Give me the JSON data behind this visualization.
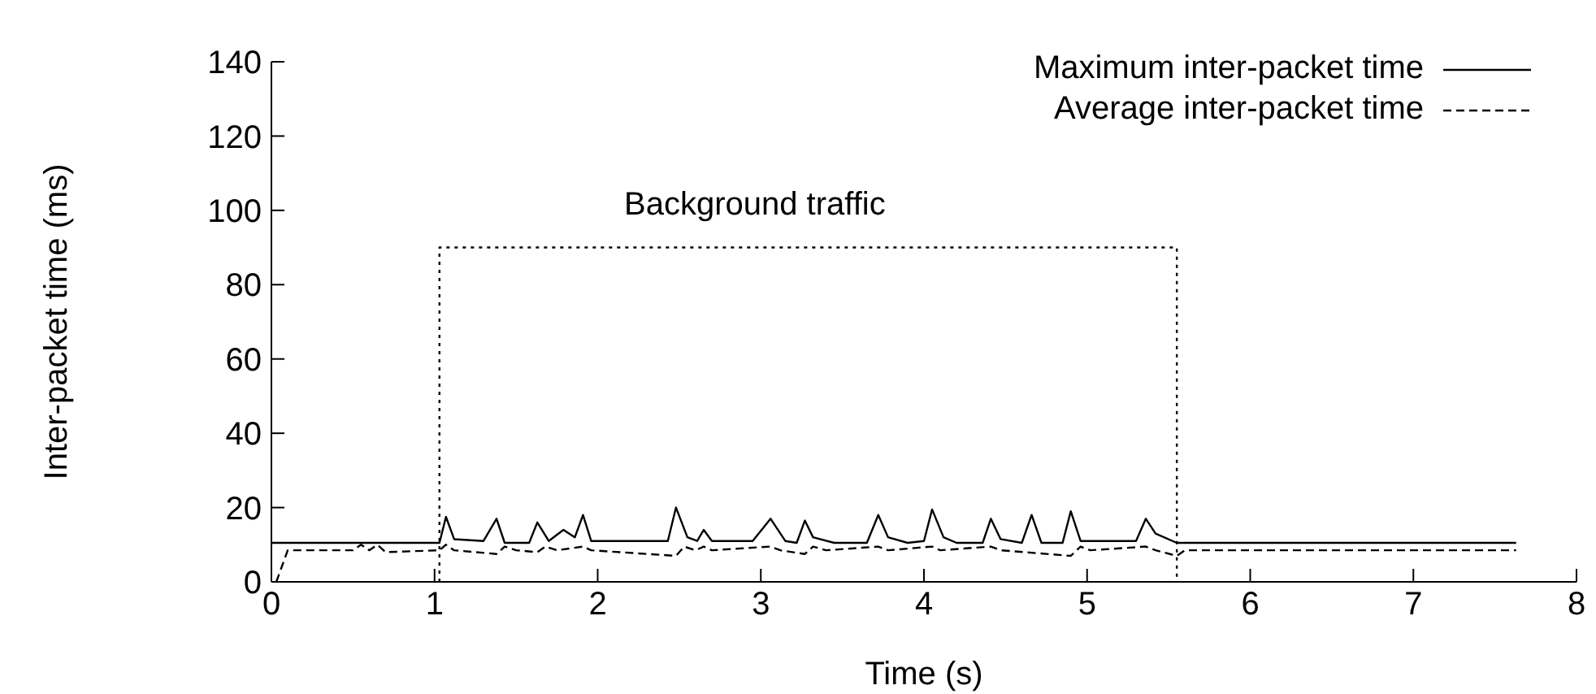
{
  "chart_data": {
    "type": "line",
    "xlabel": "Time (s)",
    "ylabel": "Inter-packet time (ms)",
    "xlim": [
      0,
      8
    ],
    "xticks": [
      0,
      1,
      2,
      3,
      4,
      5,
      6,
      7,
      8
    ],
    "ylim": [
      0,
      140
    ],
    "yticks": [
      0,
      20,
      40,
      60,
      80,
      100,
      120,
      140
    ],
    "grid": false,
    "legend": "top right",
    "marker": "none",
    "annotations": [
      "Background traffic"
    ],
    "series": [
      {
        "name": "Maximum inter-packet time",
        "color": "#000000",
        "line_style": "solid",
        "x": [
          0,
          1.03,
          1.07,
          1.12,
          1.3,
          1.38,
          1.43,
          1.58,
          1.63,
          1.7,
          1.79,
          1.86,
          1.91,
          1.96,
          2.2,
          2.43,
          2.48,
          2.55,
          2.61,
          2.65,
          2.7,
          2.95,
          3.06,
          3.15,
          3.22,
          3.27,
          3.32,
          3.45,
          3.65,
          3.72,
          3.78,
          3.9,
          4.0,
          4.05,
          4.12,
          4.2,
          4.36,
          4.41,
          4.47,
          4.6,
          4.66,
          4.72,
          4.85,
          4.9,
          4.96,
          5.3,
          5.36,
          5.42,
          5.55,
          7.63
        ],
        "values": [
          10.5,
          10.5,
          17.5,
          11.5,
          11,
          17,
          10.5,
          10.5,
          16,
          11,
          14,
          12,
          18,
          11,
          11,
          11,
          20,
          12,
          11,
          14,
          11,
          11,
          17,
          11,
          10.5,
          16.5,
          12,
          10.5,
          10.5,
          18,
          12,
          10.5,
          11,
          19.5,
          12,
          10.5,
          10.5,
          17,
          11.5,
          10.5,
          18,
          10.5,
          10.5,
          19,
          11,
          11,
          17,
          13,
          10.5,
          10.5
        ]
      },
      {
        "name": "Average inter-packet time",
        "color": "#000000",
        "line_style": "dashed",
        "x": [
          0.03,
          0.1,
          0.5,
          0.55,
          0.6,
          0.65,
          0.7,
          1.03,
          1.07,
          1.12,
          1.38,
          1.43,
          1.5,
          1.63,
          1.68,
          1.75,
          1.91,
          1.96,
          2.48,
          2.53,
          2.6,
          2.65,
          2.7,
          3.06,
          3.12,
          3.27,
          3.32,
          3.4,
          3.72,
          3.78,
          4.05,
          4.1,
          4.41,
          4.47,
          4.9,
          4.96,
          5.02,
          5.36,
          5.42,
          5.55,
          5.6,
          7.63
        ],
        "values": [
          0,
          8.5,
          8.5,
          10,
          8.5,
          10,
          8,
          8.5,
          10,
          8.5,
          7.5,
          9.5,
          8.5,
          8,
          9.5,
          8.5,
          9.5,
          8.5,
          7,
          9.5,
          8.5,
          9.5,
          8.5,
          9.5,
          8.5,
          7.5,
          9.5,
          8.5,
          9.5,
          8.5,
          9.5,
          8.5,
          9.5,
          8.5,
          7,
          9.5,
          8.5,
          9.5,
          8.5,
          7,
          8.5,
          8.5
        ]
      },
      {
        "color": "#000000",
        "line_style": "dotted",
        "x": [
          1.03,
          1.03,
          5.55,
          5.55
        ],
        "values": [
          0,
          90,
          90,
          0
        ]
      }
    ]
  }
}
